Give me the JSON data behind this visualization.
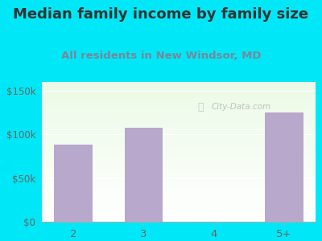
{
  "title": "Median family income by family size",
  "subtitle": "All residents in New Windsor, MD",
  "categories": [
    "2",
    "3",
    "4",
    "5+"
  ],
  "values": [
    88000,
    108000,
    0,
    125000
  ],
  "bar_color": "#b8a8cc",
  "title_color": "#333333",
  "subtitle_color": "#778899",
  "background_outer": "#00e8f8",
  "yticks": [
    0,
    50000,
    100000,
    150000
  ],
  "ytick_labels": [
    "$0",
    "$50k",
    "$100k",
    "$150k"
  ],
  "ylim": [
    0,
    160000
  ],
  "watermark": "City-Data.com",
  "watermark_color": "#aaaaaa",
  "tick_color": "#666666",
  "axis_color": "#aaaaaa",
  "title_fontsize": 13,
  "subtitle_fontsize": 9.5
}
